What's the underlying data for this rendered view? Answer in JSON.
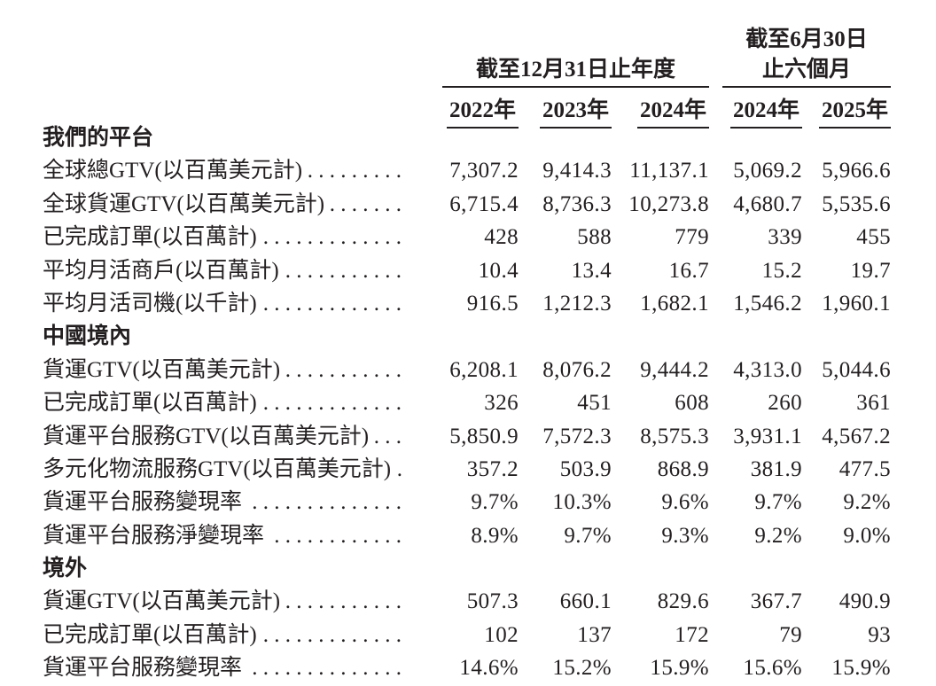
{
  "header": {
    "period_annual": "截至12月31日止年度",
    "period_interim_line1": "截至6月30日",
    "period_interim_line2": "止六個月",
    "year_columns": [
      "2022年",
      "2023年",
      "2024年",
      "2024年",
      "2025年"
    ]
  },
  "sections": [
    {
      "title": "我們的平台",
      "rows": [
        {
          "label": "全球總GTV(以百萬美元計)",
          "values": [
            "7,307.2",
            "9,414.3",
            "11,137.1",
            "5,069.2",
            "5,966.6"
          ]
        },
        {
          "label": "全球貨運GTV(以百萬美元計)",
          "values": [
            "6,715.4",
            "8,736.3",
            "10,273.8",
            "4,680.7",
            "5,535.6"
          ]
        },
        {
          "label": "已完成訂單(以百萬計)",
          "values": [
            "428",
            "588",
            "779",
            "339",
            "455"
          ]
        },
        {
          "label": "平均月活商戶(以百萬計)",
          "values": [
            "10.4",
            "13.4",
            "16.7",
            "15.2",
            "19.7"
          ]
        },
        {
          "label": "平均月活司機(以千計)",
          "values": [
            "916.5",
            "1,212.3",
            "1,682.1",
            "1,546.2",
            "1,960.1"
          ]
        }
      ]
    },
    {
      "title": "中國境內",
      "rows": [
        {
          "label": "貨運GTV(以百萬美元計)",
          "values": [
            "6,208.1",
            "8,076.2",
            "9,444.2",
            "4,313.0",
            "5,044.6"
          ]
        },
        {
          "label": "已完成訂單(以百萬計)",
          "values": [
            "326",
            "451",
            "608",
            "260",
            "361"
          ]
        },
        {
          "label": "貨運平台服務GTV(以百萬美元計)",
          "values": [
            "5,850.9",
            "7,572.3",
            "8,575.3",
            "3,931.1",
            "4,567.2"
          ]
        },
        {
          "label": "多元化物流服務GTV(以百萬美元計)",
          "values": [
            "357.2",
            "503.9",
            "868.9",
            "381.9",
            "477.5"
          ]
        },
        {
          "label": "貨運平台服務變現率",
          "values": [
            "9.7%",
            "10.3%",
            "9.6%",
            "9.7%",
            "9.2%"
          ]
        },
        {
          "label": "貨運平台服務淨變現率",
          "values": [
            "8.9%",
            "9.7%",
            "9.3%",
            "9.2%",
            "9.0%"
          ]
        }
      ]
    },
    {
      "title": "境外",
      "rows": [
        {
          "label": "貨運GTV(以百萬美元計)",
          "values": [
            "507.3",
            "660.1",
            "829.6",
            "367.7",
            "490.9"
          ]
        },
        {
          "label": "已完成訂單(以百萬計)",
          "values": [
            "102",
            "137",
            "172",
            "79",
            "93"
          ]
        },
        {
          "label": "貨運平台服務變現率",
          "values": [
            "14.6%",
            "15.2%",
            "15.9%",
            "15.6%",
            "15.9%"
          ]
        }
      ]
    }
  ],
  "colors": {
    "text": "#231f20",
    "background": "#ffffff",
    "rule": "#231f20"
  }
}
